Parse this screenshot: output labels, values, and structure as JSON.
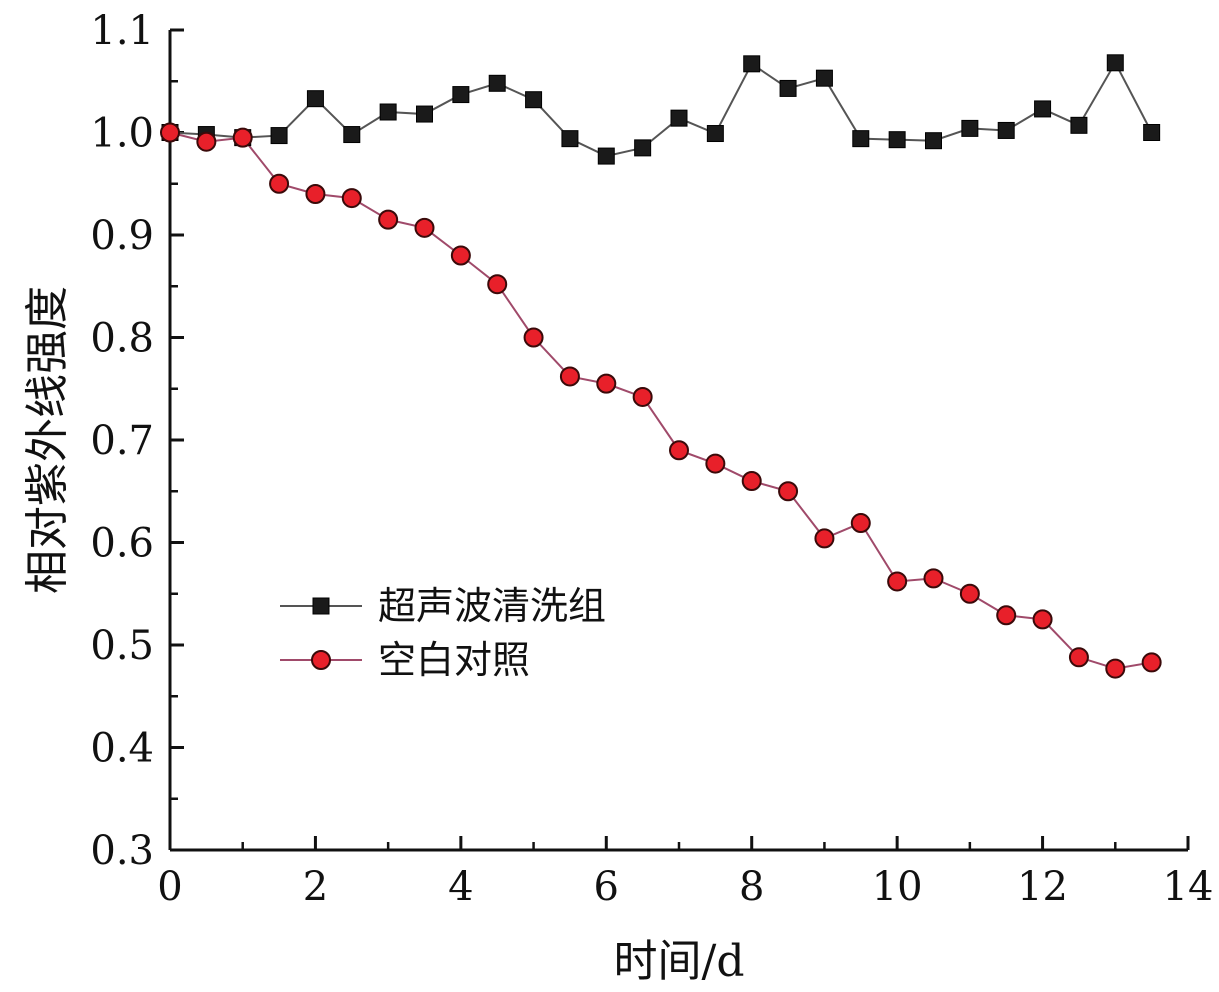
{
  "chart_data": {
    "type": "line",
    "xlabel": "时间/d",
    "ylabel": "相对紫外线强度",
    "xlim": [
      0,
      14
    ],
    "ylim": [
      0.3,
      1.1
    ],
    "x_ticks": [
      "0",
      "2",
      "4",
      "6",
      "8",
      "10",
      "12",
      "14"
    ],
    "y_ticks": [
      "0.3",
      "0.4",
      "0.5",
      "0.6",
      "0.7",
      "0.8",
      "0.9",
      "1.0",
      "1.1"
    ],
    "grid": false,
    "legend_position": "left-middle",
    "x": [
      0,
      0.5,
      1,
      1.5,
      2,
      2.5,
      3,
      3.5,
      4,
      4.5,
      5,
      5.5,
      6,
      6.5,
      7,
      7.5,
      8,
      8.5,
      9,
      9.5,
      10,
      10.5,
      11,
      11.5,
      12,
      12.5,
      13,
      13.5
    ],
    "series": [
      {
        "name": "超声波清洗组",
        "marker": "square",
        "color": "#1a1a1a",
        "line_color": "#555555",
        "values": [
          1.0,
          0.998,
          0.995,
          0.997,
          1.033,
          0.998,
          1.02,
          1.018,
          1.037,
          1.048,
          1.032,
          0.994,
          0.977,
          0.985,
          1.014,
          0.999,
          1.067,
          1.043,
          1.053,
          0.994,
          0.993,
          0.992,
          1.004,
          1.002,
          1.023,
          1.007,
          1.068,
          1.0
        ]
      },
      {
        "name": "空白对照",
        "marker": "circle",
        "color": "#e8202a",
        "line_color": "#a04a6a",
        "values": [
          1.0,
          0.991,
          0.995,
          0.95,
          0.94,
          0.936,
          0.915,
          0.907,
          0.88,
          0.852,
          0.8,
          0.762,
          0.755,
          0.742,
          0.69,
          0.677,
          0.66,
          0.65,
          0.604,
          0.619,
          0.562,
          0.565,
          0.55,
          0.529,
          0.525,
          0.488,
          0.477,
          0.483
        ]
      }
    ]
  }
}
